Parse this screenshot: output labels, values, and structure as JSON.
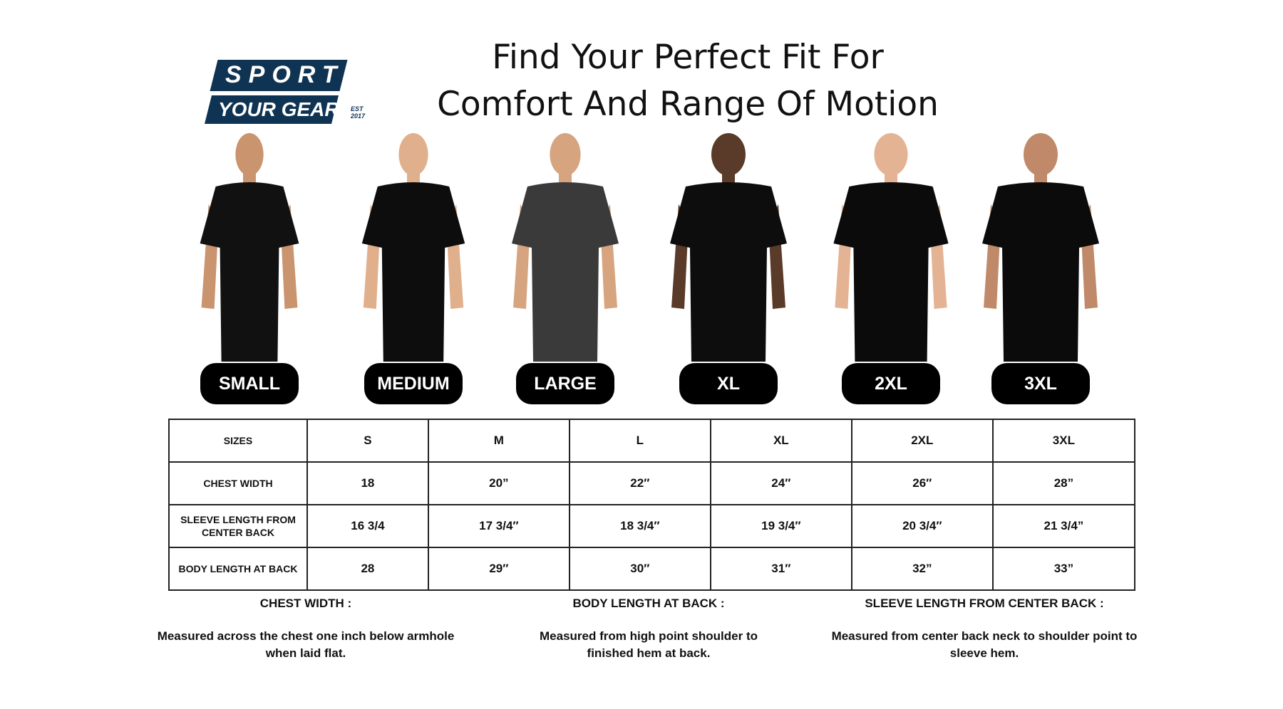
{
  "logo": {
    "line1": "SPORT",
    "line2": "YOUR GEAR",
    "est": "EST 2017",
    "color": "#0f3352"
  },
  "title": {
    "line1": "Find Your Perfect Fit For",
    "line2": "Comfort And Range Of Motion"
  },
  "sizes": [
    {
      "label": "SMALL",
      "shirt": "#111111",
      "skin": "#c9946e"
    },
    {
      "label": "MEDIUM",
      "shirt": "#0d0d0d",
      "skin": "#e0b08c"
    },
    {
      "label": "LARGE",
      "shirt": "#3a3a3a",
      "skin": "#d6a47f"
    },
    {
      "label": "XL",
      "shirt": "#0d0d0d",
      "skin": "#5a3a28"
    },
    {
      "label": "2XL",
      "shirt": "#0b0b0b",
      "skin": "#e3b394"
    },
    {
      "label": "3XL",
      "shirt": "#0b0b0b",
      "skin": "#c08a6a"
    }
  ],
  "table": {
    "rows": [
      {
        "label": "SIZES",
        "values": [
          "S",
          "M",
          "L",
          "XL",
          "2XL",
          "3XL"
        ]
      },
      {
        "label": "CHEST WIDTH",
        "values": [
          "18",
          "20”",
          "22″",
          "24″",
          "26″",
          "28”"
        ]
      },
      {
        "label": "SLEEVE LENGTH FROM CENTER BACK",
        "values": [
          "16 3/4",
          "17 3/4″",
          "18 3/4″",
          "19 3/4″",
          "20 3/4″",
          "21 3/4”"
        ]
      },
      {
        "label": "BODY LENGTH AT BACK",
        "values": [
          "28",
          "29″",
          "30″",
          "31″",
          "32”",
          "33”"
        ]
      }
    ]
  },
  "notes": [
    {
      "heading": "CHEST WIDTH :",
      "text": "Measured across the chest one inch below armhole when laid flat."
    },
    {
      "heading": "BODY LENGTH AT BACK :",
      "text": "Measured from high point shoulder to finished hem at back."
    },
    {
      "heading": "SLEEVE LENGTH FROM CENTER BACK :",
      "text": "Measured from center back neck to shoulder point to sleeve hem."
    }
  ]
}
